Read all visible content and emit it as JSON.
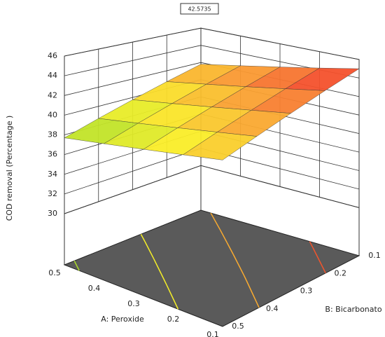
{
  "chart_data": {
    "type": "surface",
    "annotation": "42.5735",
    "x_label": "A: Peroxide",
    "y_label": "B: Bicarbonato",
    "z_label": "COD removal (Percentage )",
    "x": [
      0.1,
      0.2,
      0.3,
      0.4,
      0.5
    ],
    "y": [
      0.1,
      0.2,
      0.3,
      0.4,
      0.5
    ],
    "z": [
      [
        45.0,
        44.2,
        43.4,
        42.6,
        41.8
      ],
      [
        43.98,
        43.18,
        42.38,
        41.58,
        40.78
      ],
      [
        42.95,
        42.15,
        41.35,
        40.55,
        39.75
      ],
      [
        41.93,
        41.13,
        40.33,
        39.53,
        38.73
      ],
      [
        40.9,
        40.1,
        39.3,
        38.5,
        37.7
      ]
    ],
    "xlim": [
      0.1,
      0.5
    ],
    "xticks": [
      0.1,
      0.2,
      0.3,
      0.4,
      0.5
    ],
    "ylim": [
      0.1,
      0.5
    ],
    "yticks": [
      0.1,
      0.2,
      0.3,
      0.4,
      0.5
    ],
    "zlim": [
      30,
      46
    ],
    "zticks": [
      30,
      32,
      34,
      36,
      38,
      40,
      42,
      44,
      46
    ],
    "contour_levels": [
      38,
      40,
      42,
      44
    ],
    "floor_color": "#5a5a5a"
  }
}
